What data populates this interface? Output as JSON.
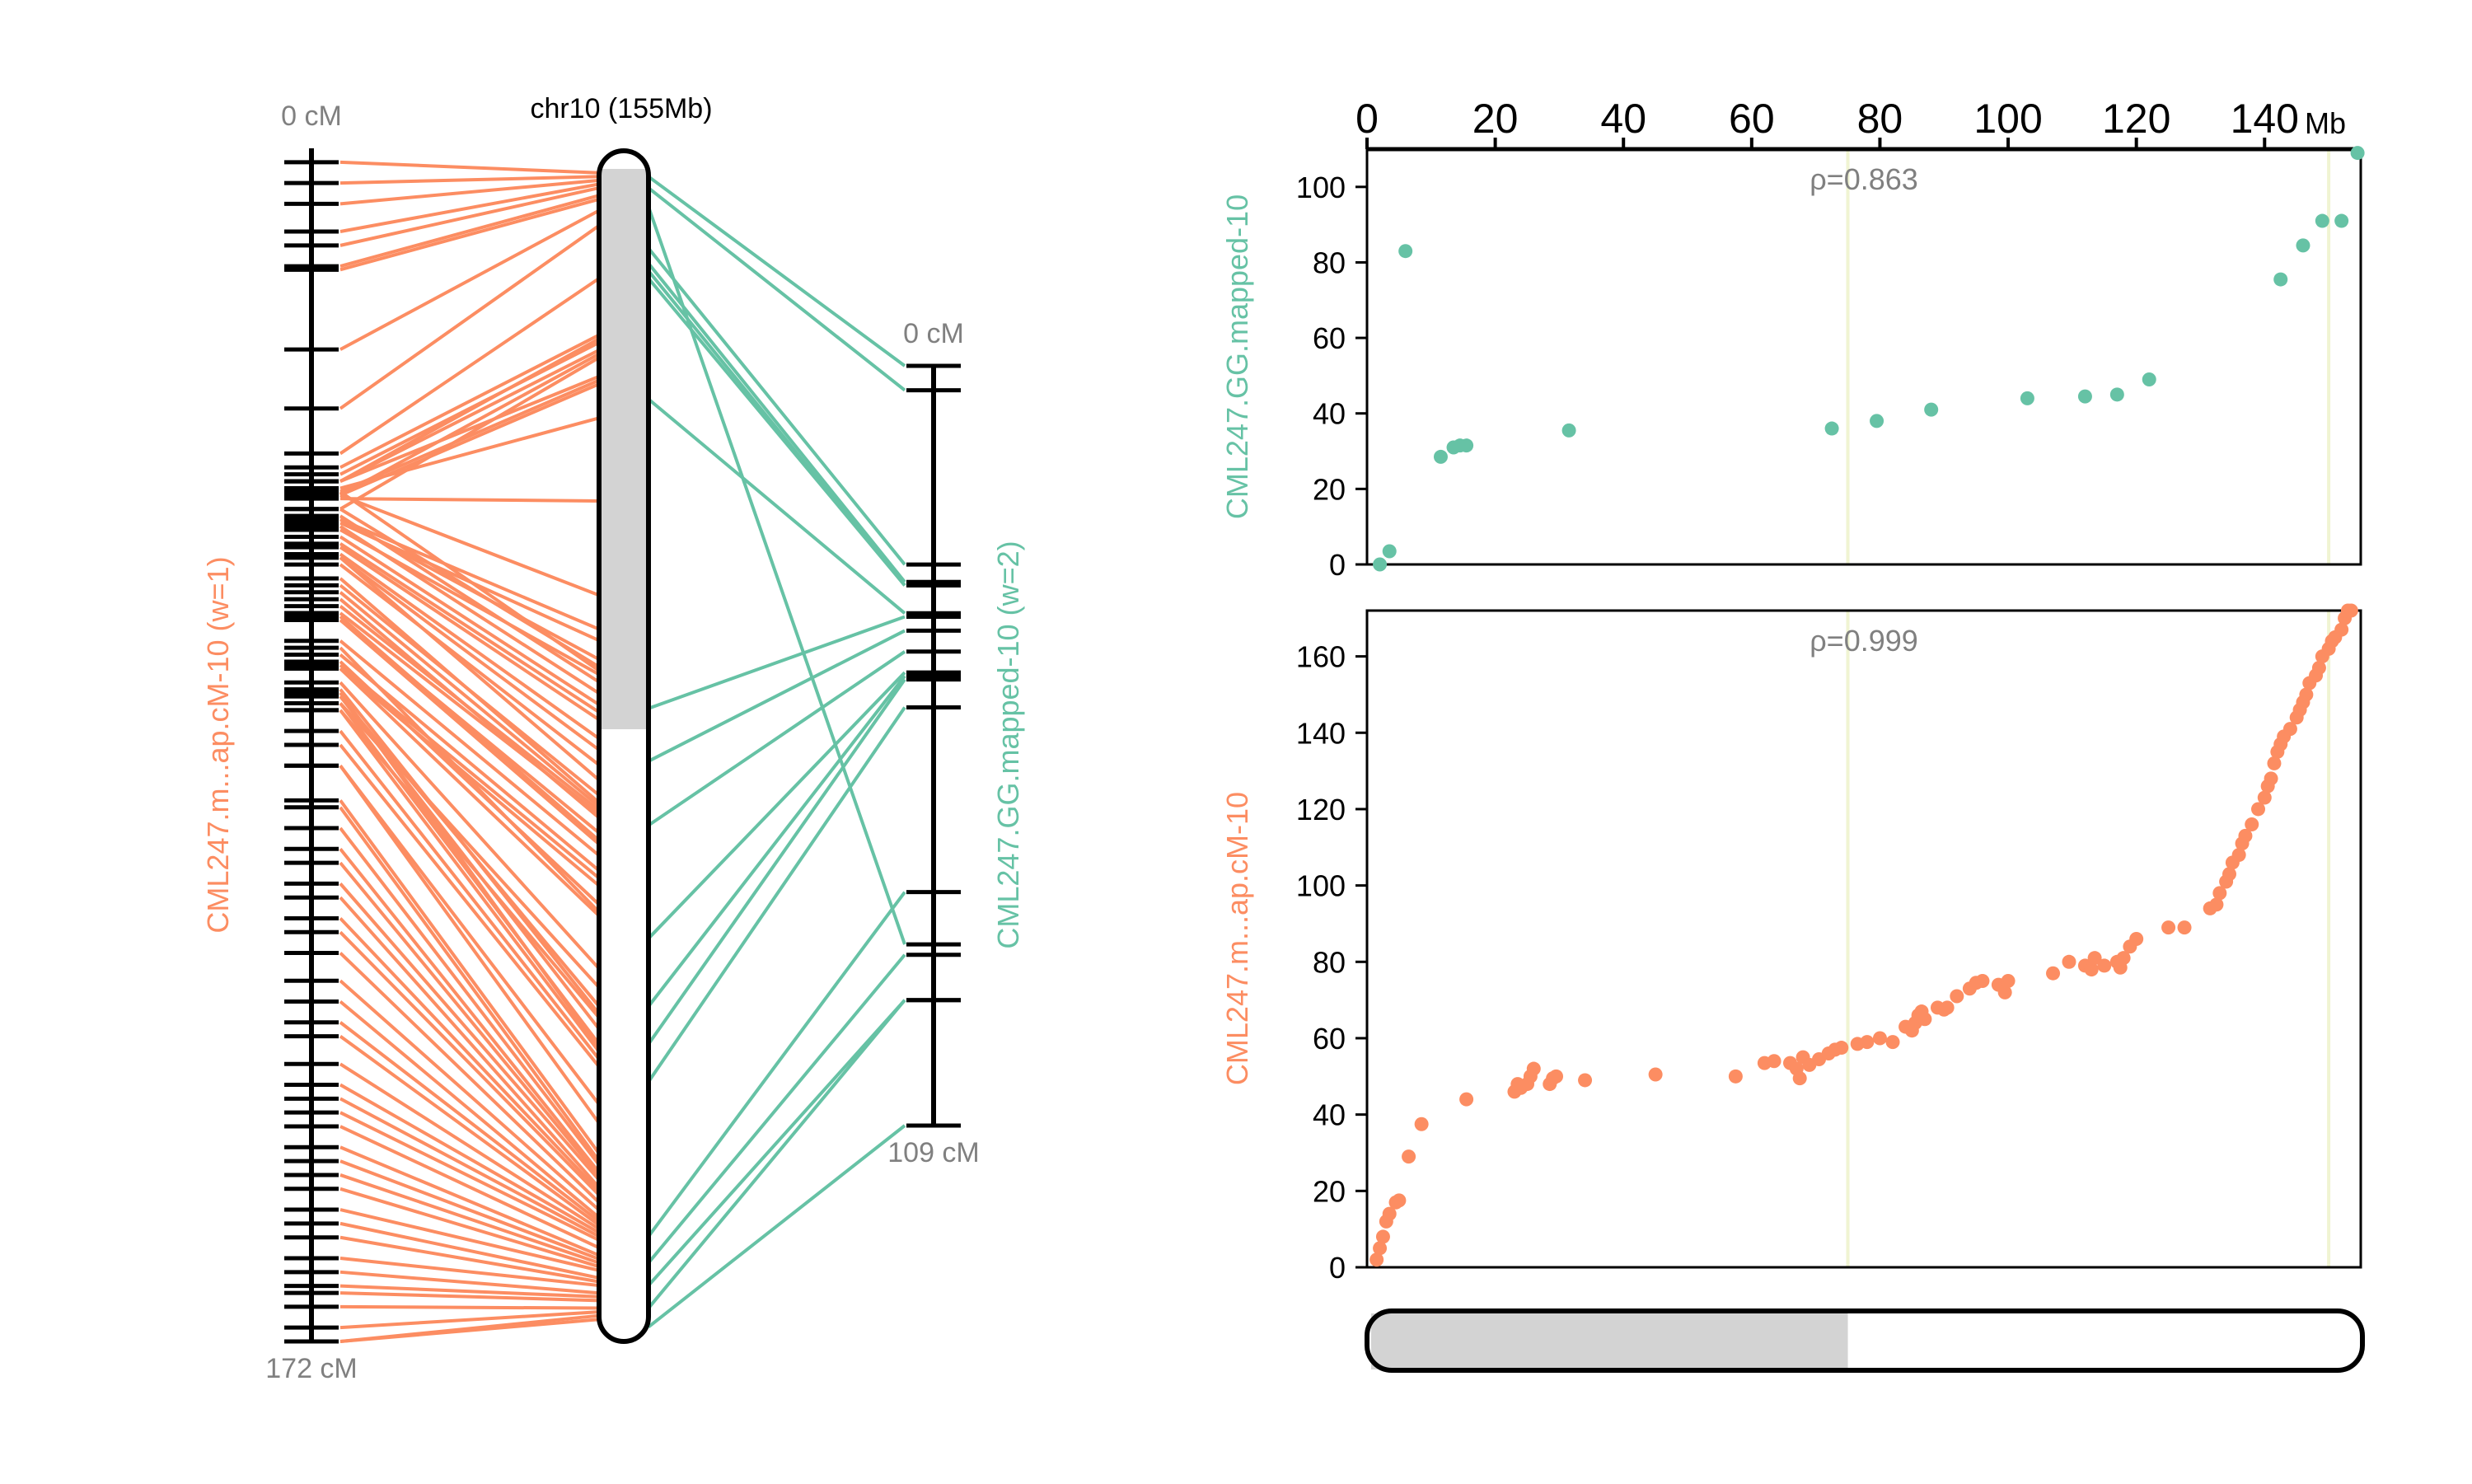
{
  "colors": {
    "orange": "#fc8d62",
    "teal": "#66c2a5",
    "centromere": "#d3d3d3",
    "guide": "#f0f4d2",
    "text_gray": "#808080"
  },
  "left_panel": {
    "chromosome_label": "chr10 (155Mb)",
    "map1": {
      "label": "CML247.m...ap.cM-10 (w=1)",
      "top_label": "0 cM",
      "bottom_label": "172 cM",
      "max_cM": 172
    },
    "map2": {
      "label": "CML247.GG.mapped-10 (w=2)",
      "top_label": "0 cM",
      "bottom_label": "109 cM",
      "max_cM": 109
    },
    "centromere_range_mb": [
      0,
      75
    ]
  },
  "chart_data": [
    {
      "type": "scatter",
      "title": "",
      "ylabel": "CML247.GG.mapped-10",
      "xlabel": "",
      "x_unit_label": "Mb",
      "xlim": [
        0,
        155
      ],
      "ylim": [
        0,
        110
      ],
      "xticks": [
        0,
        20,
        40,
        60,
        80,
        100,
        120,
        140
      ],
      "yticks": [
        0,
        20,
        40,
        60,
        80,
        100
      ],
      "annotation": "ρ=0.863",
      "vertical_guides_mb": [
        75,
        150
      ],
      "series": [
        {
          "color": "#66c2a5",
          "points": [
            [
              2,
              0
            ],
            [
              3.5,
              3.5
            ],
            [
              6,
              83
            ],
            [
              11.5,
              28.5
            ],
            [
              13.5,
              31
            ],
            [
              14.5,
              31.5
            ],
            [
              15.5,
              31.5
            ],
            [
              31.5,
              35.5
            ],
            [
              72.5,
              36
            ],
            [
              79.5,
              38
            ],
            [
              88,
              41
            ],
            [
              103,
              44
            ],
            [
              112,
              44.5
            ],
            [
              117,
              45
            ],
            [
              122,
              49
            ],
            [
              142.5,
              75.5
            ],
            [
              146,
              84.5
            ],
            [
              149,
              91
            ],
            [
              152,
              91
            ],
            [
              154.5,
              109
            ]
          ]
        }
      ]
    },
    {
      "type": "scatter",
      "title": "",
      "ylabel": "CML247.m...ap.cM-10",
      "xlabel": "",
      "xlim": [
        0,
        155
      ],
      "ylim": [
        0,
        172
      ],
      "yticks": [
        0,
        20,
        40,
        60,
        80,
        100,
        120,
        140,
        160
      ],
      "annotation": "ρ=0.999",
      "vertical_guides_mb": [
        75,
        150
      ],
      "series": [
        {
          "color": "#fc8d62",
          "points": [
            [
              1.5,
              2
            ],
            [
              2,
              5
            ],
            [
              2.5,
              8
            ],
            [
              3,
              12
            ],
            [
              3.5,
              14
            ],
            [
              4.5,
              17
            ],
            [
              5,
              17.5
            ],
            [
              6.5,
              29
            ],
            [
              8.5,
              37.5
            ],
            [
              15.5,
              44
            ],
            [
              23,
              46
            ],
            [
              23.5,
              48
            ],
            [
              24,
              47
            ],
            [
              25,
              48
            ],
            [
              25.5,
              50
            ],
            [
              26,
              52
            ],
            [
              28.5,
              48
            ],
            [
              29,
              49.5
            ],
            [
              29.5,
              50
            ],
            [
              34,
              49
            ],
            [
              45,
              50.5
            ],
            [
              57.5,
              50
            ],
            [
              62,
              53.5
            ],
            [
              63.5,
              54
            ],
            [
              66,
              53.5
            ],
            [
              67,
              52
            ],
            [
              67.5,
              49.5
            ],
            [
              68,
              55
            ],
            [
              69,
              53
            ],
            [
              70.5,
              54.5
            ],
            [
              72,
              56
            ],
            [
              73,
              57
            ],
            [
              74,
              57.5
            ],
            [
              76.5,
              58.5
            ],
            [
              78,
              59
            ],
            [
              80,
              60
            ],
            [
              82,
              59
            ],
            [
              84,
              63
            ],
            [
              85,
              62
            ],
            [
              85.5,
              64
            ],
            [
              86,
              66
            ],
            [
              86.5,
              67
            ],
            [
              87,
              65
            ],
            [
              89,
              68
            ],
            [
              90,
              67.5
            ],
            [
              90.5,
              68
            ],
            [
              92,
              71
            ],
            [
              94,
              73
            ],
            [
              95,
              74.5
            ],
            [
              96,
              75
            ],
            [
              98.5,
              74
            ],
            [
              99.5,
              72
            ],
            [
              100,
              75
            ],
            [
              107,
              77
            ],
            [
              109.5,
              80
            ],
            [
              112,
              79
            ],
            [
              113,
              78
            ],
            [
              113.5,
              81
            ],
            [
              115,
              79
            ],
            [
              117,
              80
            ],
            [
              117.5,
              78.5
            ],
            [
              118,
              81
            ],
            [
              119,
              84
            ],
            [
              120,
              86
            ],
            [
              125,
              89
            ],
            [
              127.5,
              89
            ],
            [
              131.5,
              94
            ],
            [
              132.5,
              95
            ],
            [
              133,
              98
            ],
            [
              134,
              101
            ],
            [
              134.5,
              103
            ],
            [
              135,
              106
            ],
            [
              136,
              108
            ],
            [
              136.5,
              111
            ],
            [
              137,
              113
            ],
            [
              138,
              116
            ],
            [
              139,
              120
            ],
            [
              140,
              123
            ],
            [
              140.5,
              126
            ],
            [
              141,
              128
            ],
            [
              141.5,
              132
            ],
            [
              142,
              135
            ],
            [
              142.5,
              137
            ],
            [
              143,
              139
            ],
            [
              144,
              141
            ],
            [
              145,
              144
            ],
            [
              145.5,
              146
            ],
            [
              146,
              148
            ],
            [
              146.5,
              150
            ],
            [
              147,
              153
            ],
            [
              148,
              155
            ],
            [
              148.5,
              157
            ],
            [
              149,
              160
            ],
            [
              150,
              162
            ],
            [
              150.5,
              164
            ],
            [
              151,
              165
            ],
            [
              152,
              167
            ],
            [
              152.5,
              170
            ],
            [
              153,
              172
            ],
            [
              153.5,
              172
            ]
          ]
        }
      ]
    }
  ]
}
